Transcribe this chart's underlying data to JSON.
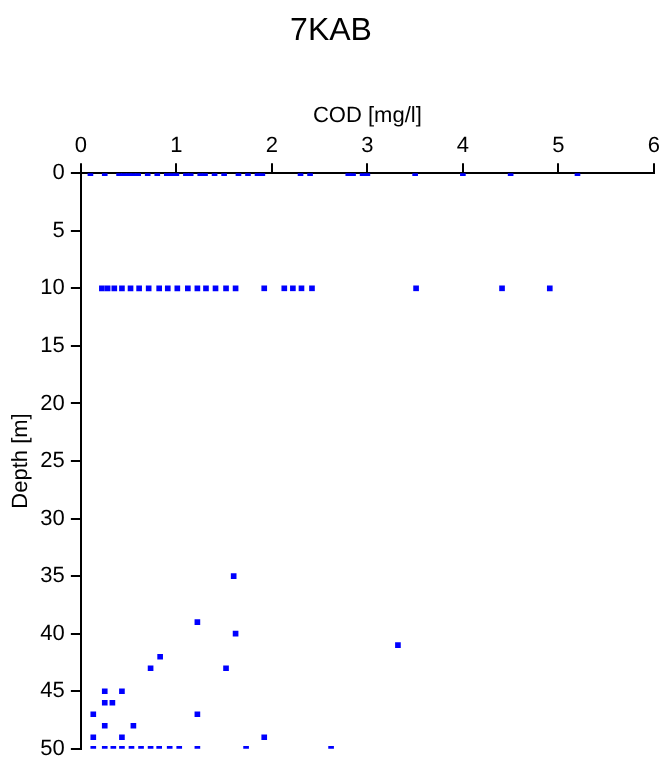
{
  "chart_data": {
    "type": "scatter",
    "title": "7KAB",
    "xlabel": "COD [mg/l]",
    "ylabel": "Depth [m]",
    "x": [
      0.1,
      0.25,
      0.4,
      0.45,
      0.5,
      0.55,
      0.6,
      0.7,
      0.8,
      0.9,
      0.95,
      1.0,
      1.1,
      1.15,
      1.25,
      1.3,
      1.4,
      1.5,
      1.65,
      1.75,
      1.85,
      1.9,
      2.3,
      2.4,
      2.8,
      2.85,
      2.95,
      3.0,
      3.5,
      4.0,
      4.5,
      5.2,
      0.22,
      0.28,
      0.35,
      0.43,
      0.52,
      0.61,
      0.71,
      0.82,
      0.91,
      1.01,
      1.12,
      1.22,
      1.31,
      1.41,
      1.52,
      1.62,
      1.92,
      2.13,
      2.22,
      2.31,
      2.42,
      3.51,
      4.41,
      4.91,
      1.6,
      1.22,
      1.62,
      3.32,
      0.83,
      0.73,
      1.52,
      0.25,
      0.43,
      0.25,
      0.33,
      0.13,
      1.22,
      0.25,
      0.55,
      0.13,
      0.43,
      1.92,
      0.13,
      0.25,
      0.34,
      0.43,
      0.53,
      0.63,
      0.73,
      0.82,
      0.93,
      1.03,
      1.22,
      1.73,
      2.62
    ],
    "values": [
      0,
      0,
      0,
      0,
      0,
      0,
      0,
      0,
      0,
      0,
      0,
      0,
      0,
      0,
      0,
      0,
      0,
      0,
      0,
      0,
      0,
      0,
      0,
      0,
      0,
      0,
      0,
      0,
      0,
      0,
      0,
      0,
      10,
      10,
      10,
      10,
      10,
      10,
      10,
      10,
      10,
      10,
      10,
      10,
      10,
      10,
      10,
      10,
      10,
      10,
      10,
      10,
      10,
      10,
      10,
      10,
      35,
      39,
      40,
      41,
      42,
      43,
      43,
      45,
      45,
      46,
      46,
      47,
      47,
      48,
      48,
      49,
      49,
      49,
      50,
      50,
      50,
      50,
      50,
      50,
      50,
      50,
      50,
      50,
      50,
      50,
      50
    ],
    "color": "#0000ff",
    "marker": "square",
    "xlim": [
      0,
      6
    ],
    "xticks": [
      0,
      1,
      2,
      3,
      4,
      5,
      6
    ],
    "ylim": [
      50,
      0
    ],
    "yticks": [
      0,
      5,
      10,
      15,
      20,
      25,
      30,
      35,
      40,
      45,
      50
    ],
    "grid": false,
    "legend": false
  }
}
